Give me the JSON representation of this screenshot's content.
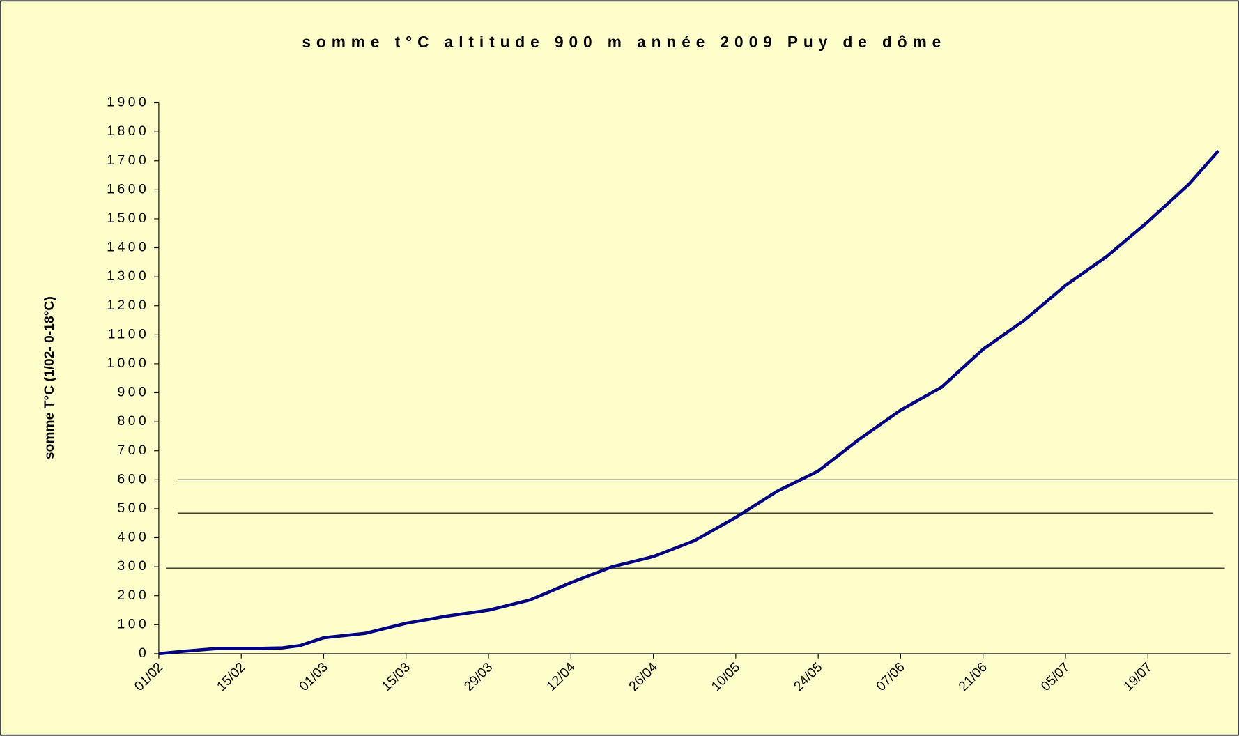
{
  "chart_data": {
    "type": "line",
    "title": "somme t°C altitude 900 m année 2009 Puy de dôme",
    "y_label": "somme T°C (1/02- 0-18°C)",
    "x": [
      0,
      4,
      10,
      17,
      21,
      24,
      28,
      35,
      42,
      49,
      56,
      63,
      70,
      77,
      84,
      91,
      98,
      105,
      112,
      119,
      126,
      133,
      140,
      147,
      154,
      161,
      168,
      175,
      180
    ],
    "series": [
      {
        "name": "somme",
        "color": "#000080",
        "values": [
          0,
          8,
          18,
          18,
          20,
          28,
          55,
          70,
          105,
          130,
          150,
          185,
          245,
          300,
          335,
          390,
          470,
          560,
          630,
          740,
          840,
          920,
          1050,
          1150,
          1270,
          1370,
          1490,
          1620,
          1735
        ]
      }
    ],
    "xlim": [
      0,
      182
    ],
    "xticks": [
      {
        "value": 0,
        "label": "01/02"
      },
      {
        "value": 14,
        "label": "15/02"
      },
      {
        "value": 28,
        "label": "01/03"
      },
      {
        "value": 42,
        "label": "15/03"
      },
      {
        "value": 56,
        "label": "29/03"
      },
      {
        "value": 70,
        "label": "12/04"
      },
      {
        "value": 84,
        "label": "26/04"
      },
      {
        "value": 98,
        "label": "10/05"
      },
      {
        "value": 112,
        "label": "24/05"
      },
      {
        "value": 126,
        "label": "07/06"
      },
      {
        "value": 140,
        "label": "21/06"
      },
      {
        "value": 154,
        "label": "05/07"
      },
      {
        "value": 168,
        "label": "19/07"
      }
    ],
    "ylim": [
      0,
      1900
    ],
    "yticks": [
      0,
      100,
      200,
      300,
      400,
      500,
      600,
      700,
      800,
      900,
      1000,
      1100,
      1200,
      1300,
      1400,
      1500,
      1600,
      1700,
      1800,
      1900
    ],
    "hlines": [
      600,
      485,
      295
    ],
    "grid": false
  }
}
